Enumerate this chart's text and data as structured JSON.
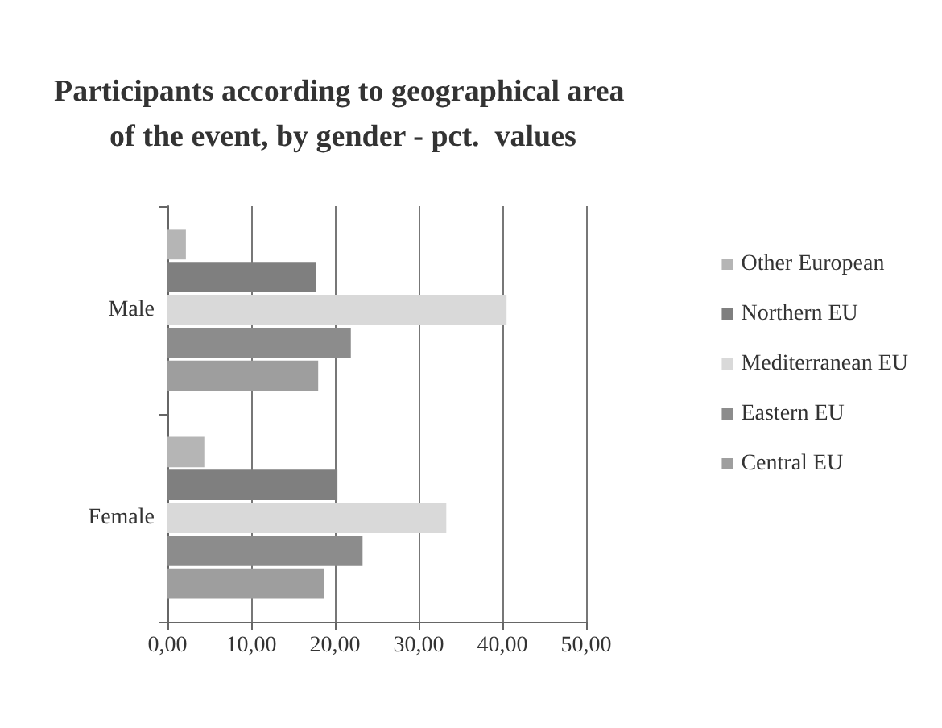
{
  "chart_data": {
    "type": "bar",
    "orientation": "horizontal",
    "title": "Participants according to geographical area of the event, by gender - pct.  values",
    "categories": [
      "Male",
      "Female"
    ],
    "series": [
      {
        "name": "Other European",
        "color": "#b5b5b5",
        "values": [
          2.2,
          4.4
        ]
      },
      {
        "name": "Northern EU",
        "color": "#7f7f7f",
        "values": [
          17.7,
          20.3
        ]
      },
      {
        "name": "Mediterranean EU",
        "color": "#d9d9d9",
        "values": [
          40.5,
          33.3
        ]
      },
      {
        "name": "Eastern EU",
        "color": "#8c8c8c",
        "values": [
          21.9,
          23.3
        ]
      },
      {
        "name": "Central EU",
        "color": "#9e9e9e",
        "values": [
          18.0,
          18.7
        ]
      }
    ],
    "xlim": [
      0,
      50
    ],
    "xticks": [
      {
        "value": 0,
        "label": "0,00"
      },
      {
        "value": 10,
        "label": "10,00"
      },
      {
        "value": 20,
        "label": "20,00"
      },
      {
        "value": 30,
        "label": "30,00"
      },
      {
        "value": 40,
        "label": "40,00"
      },
      {
        "value": 50,
        "label": "50,00"
      }
    ],
    "grid": "x",
    "legend": "right"
  }
}
